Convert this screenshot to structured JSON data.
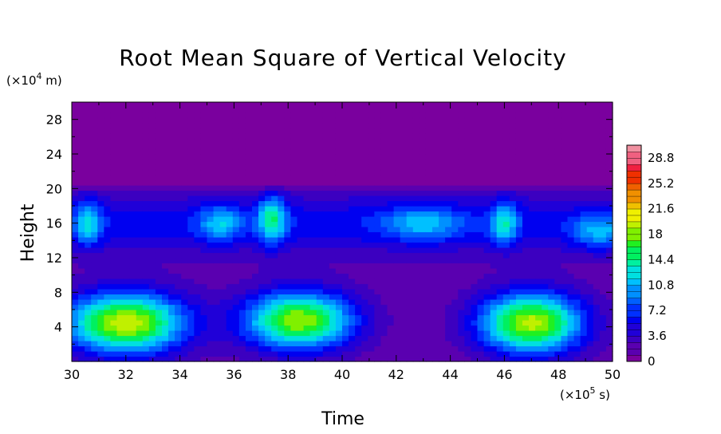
{
  "chart_data": {
    "type": "heatmap",
    "title": "Root Mean Square of Vertical Velocity",
    "xlabel": "Time",
    "ylabel": "Height",
    "x_units": "(×10",
    "x_units_exp": "5",
    "x_units_tail": " s)",
    "y_units": "(×10",
    "y_units_exp": "4",
    "y_units_tail": " m)",
    "xlim": [
      30,
      50
    ],
    "ylim": [
      0,
      30
    ],
    "x_ticks": [
      "30",
      "32",
      "34",
      "36",
      "38",
      "40",
      "42",
      "44",
      "46",
      "48",
      "50"
    ],
    "y_ticks": [
      "4",
      "8",
      "12",
      "16",
      "20",
      "24",
      "28"
    ],
    "colorbar": {
      "range": [
        0,
        30.6
      ],
      "step": 0.9,
      "tick_labels": [
        "0",
        "3.6",
        "7.2",
        "10.8",
        "14.4",
        "18",
        "21.6",
        "25.2",
        "28.8"
      ],
      "colors": [
        "#7a009e",
        "#5a00b0",
        "#3c00c0",
        "#2000d8",
        "#0000f0",
        "#0030ff",
        "#0060ff",
        "#0090ff",
        "#00c0ff",
        "#00e0e0",
        "#00f0a0",
        "#00f060",
        "#20f020",
        "#80f000",
        "#c0f000",
        "#f0f000",
        "#f0c000",
        "#f09000",
        "#f06000",
        "#f03000",
        "#f02040",
        "#f06080",
        "#f090a0"
      ]
    },
    "background_value": 0.5,
    "features": [
      {
        "name": "lower-cell-1",
        "x": 32.0,
        "y": 4.5,
        "peak": 18.0,
        "sx": 2.2,
        "sy": 3.5
      },
      {
        "name": "lower-cell-2",
        "x": 38.4,
        "y": 4.8,
        "peak": 17.0,
        "sx": 2.0,
        "sy": 3.3
      },
      {
        "name": "lower-cell-3",
        "x": 47.0,
        "y": 4.5,
        "peak": 17.5,
        "sx": 1.9,
        "sy": 3.5
      },
      {
        "name": "upper-layer",
        "x": 40.0,
        "y": 16.0,
        "peak": 4.5,
        "sx": 30.0,
        "sy": 3.5
      },
      {
        "name": "upper-core-1",
        "x": 30.6,
        "y": 16.0,
        "peak": 7.5,
        "sx": 0.5,
        "sy": 2.5
      },
      {
        "name": "upper-core-2",
        "x": 37.4,
        "y": 16.5,
        "peak": 9.0,
        "sx": 0.5,
        "sy": 2.8
      },
      {
        "name": "upper-core-3",
        "x": 46.0,
        "y": 16.0,
        "peak": 7.5,
        "sx": 0.5,
        "sy": 2.5
      },
      {
        "name": "upper-core-4",
        "x": 35.5,
        "y": 16.0,
        "peak": 6.0,
        "sx": 0.8,
        "sy": 2.0
      },
      {
        "name": "upper-core-5",
        "x": 43.0,
        "y": 16.0,
        "peak": 5.5,
        "sx": 1.5,
        "sy": 2.0
      },
      {
        "name": "upper-core-6",
        "x": 49.5,
        "y": 15.0,
        "peak": 6.0,
        "sx": 1.0,
        "sy": 2.0
      }
    ]
  }
}
